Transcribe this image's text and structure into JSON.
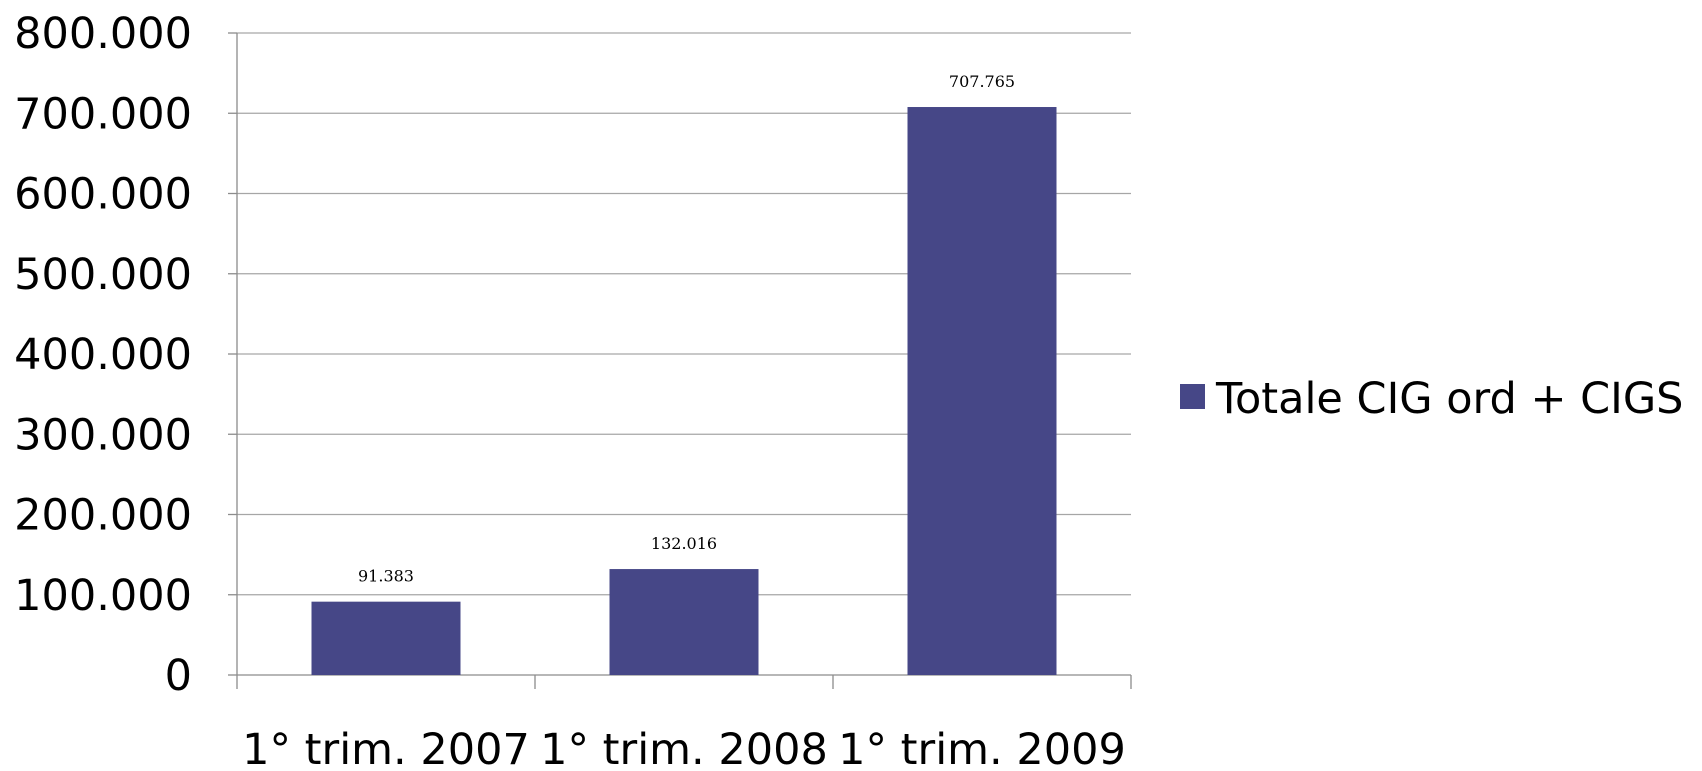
{
  "chart_data": {
    "type": "bar",
    "categories": [
      "1° trim. 2007",
      "1° trim. 2008",
      "1° trim. 2009"
    ],
    "series": [
      {
        "name": "Totale CIG ord + CIGS",
        "values": [
          91383,
          132016,
          707765
        ],
        "data_labels": [
          "91.383",
          "132.016",
          "707.765"
        ],
        "color": "#464787"
      }
    ],
    "y_ticks": [
      0,
      100000,
      200000,
      300000,
      400000,
      500000,
      600000,
      700000,
      800000
    ],
    "y_tick_labels": [
      "0",
      "100.000",
      "200.000",
      "300.000",
      "400.000",
      "500.000",
      "600.000",
      "700.000",
      "800.000"
    ],
    "ylim": [
      0,
      800000
    ],
    "grid": true,
    "gridline_color": "#a6a6a6",
    "legend_position": "right"
  }
}
